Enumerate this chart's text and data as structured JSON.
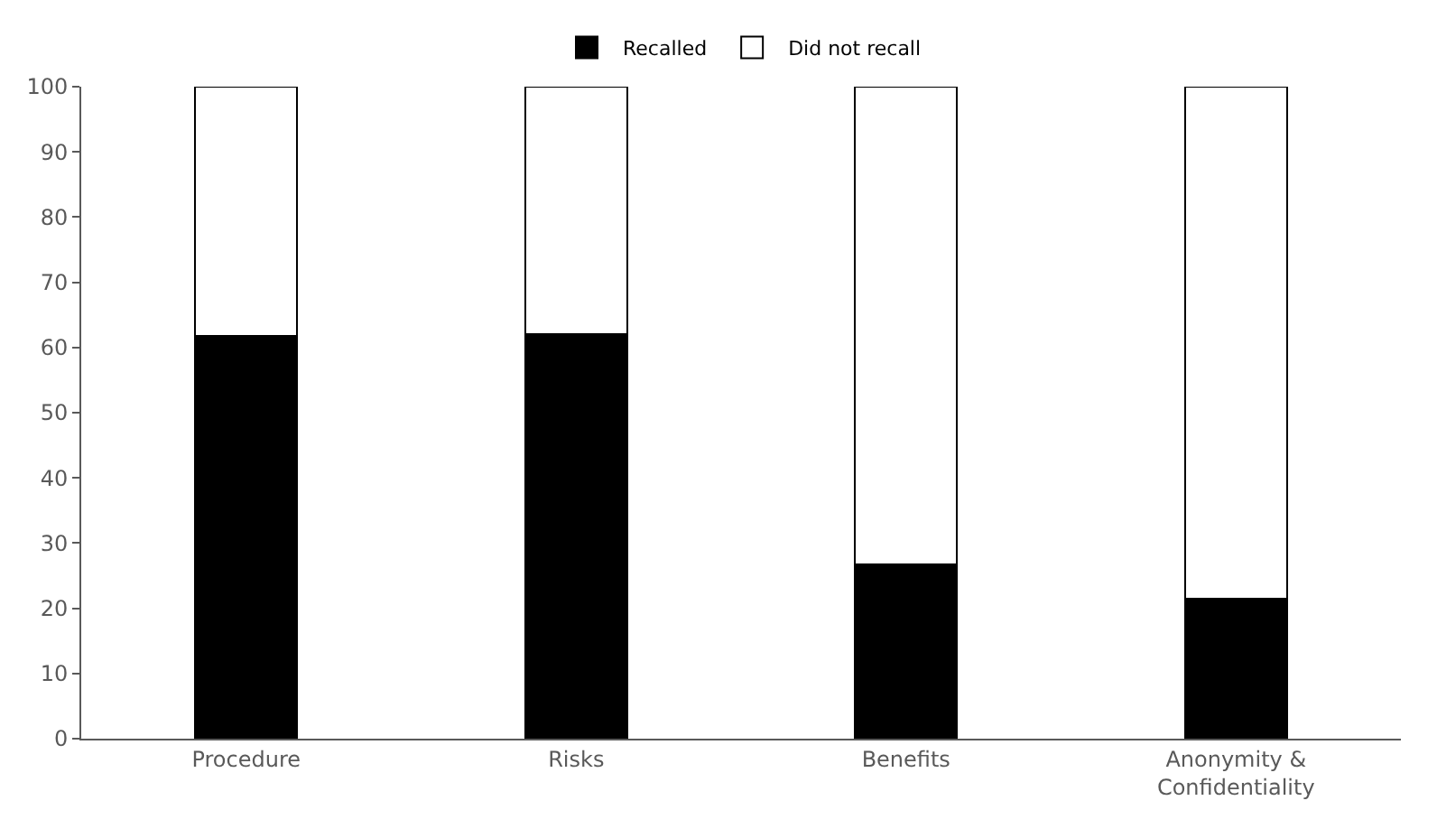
{
  "chart_data": {
    "type": "bar",
    "stacked": true,
    "categories": [
      "Procedure",
      "Risks",
      "Benefits",
      "Anonymity & Confidentiality"
    ],
    "series": [
      {
        "name": "Recalled",
        "color": "#000000",
        "values": [
          61.8,
          62.1,
          26.7,
          21.5
        ]
      },
      {
        "name": "Did not recall",
        "color": "#ffffff",
        "values": [
          38.2,
          37.9,
          73.3,
          78.5
        ]
      }
    ],
    "ylim": [
      0,
      100
    ],
    "yticks": [
      0,
      10,
      20,
      30,
      40,
      50,
      60,
      70,
      80,
      90,
      100
    ],
    "grid": false,
    "legend": "top"
  }
}
